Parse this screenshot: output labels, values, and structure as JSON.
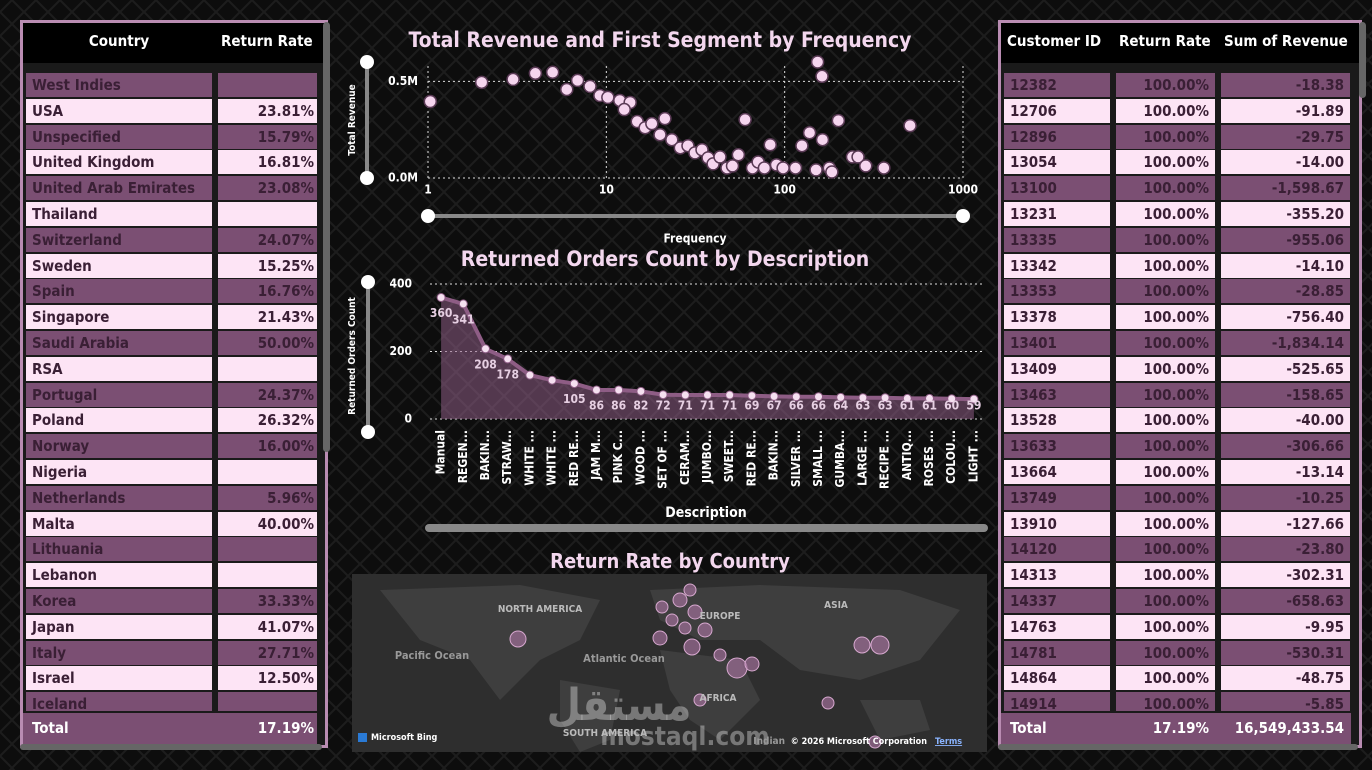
{
  "country_table": {
    "headers": [
      "Country",
      "Return Rate"
    ],
    "rows": [
      [
        "West Indies",
        null
      ],
      [
        "USA",
        "23.81%"
      ],
      [
        "Unspecified",
        "15.79%"
      ],
      [
        "United Kingdom",
        "16.81%"
      ],
      [
        "United Arab Emirates",
        "23.08%"
      ],
      [
        "Thailand",
        null
      ],
      [
        "Switzerland",
        "24.07%"
      ],
      [
        "Sweden",
        "15.25%"
      ],
      [
        "Spain",
        "16.76%"
      ],
      [
        "Singapore",
        "21.43%"
      ],
      [
        "Saudi Arabia",
        "50.00%"
      ],
      [
        "RSA",
        null
      ],
      [
        "Portugal",
        "24.37%"
      ],
      [
        "Poland",
        "26.32%"
      ],
      [
        "Norway",
        "16.00%"
      ],
      [
        "Nigeria",
        null
      ],
      [
        "Netherlands",
        "5.96%"
      ],
      [
        "Malta",
        "40.00%"
      ],
      [
        "Lithuania",
        null
      ],
      [
        "Lebanon",
        null
      ],
      [
        "Korea",
        "33.33%"
      ],
      [
        "Japan",
        "41.07%"
      ],
      [
        "Italy",
        "27.71%"
      ],
      [
        "Israel",
        "12.50%"
      ],
      [
        "Iceland",
        null
      ]
    ],
    "total": [
      "Total",
      "17.19%"
    ]
  },
  "customer_table": {
    "headers": [
      "Customer ID",
      "Return Rate",
      "Sum of Revenue"
    ],
    "rows": [
      [
        "12382",
        "100.00%",
        "-18.38"
      ],
      [
        "12706",
        "100.00%",
        "-91.89"
      ],
      [
        "12896",
        "100.00%",
        "-29.75"
      ],
      [
        "13054",
        "100.00%",
        "-14.00"
      ],
      [
        "13100",
        "100.00%",
        "-1,598.67"
      ],
      [
        "13231",
        "100.00%",
        "-355.20"
      ],
      [
        "13335",
        "100.00%",
        "-955.06"
      ],
      [
        "13342",
        "100.00%",
        "-14.10"
      ],
      [
        "13353",
        "100.00%",
        "-28.85"
      ],
      [
        "13378",
        "100.00%",
        "-756.40"
      ],
      [
        "13401",
        "100.00%",
        "-1,834.14"
      ],
      [
        "13409",
        "100.00%",
        "-525.65"
      ],
      [
        "13463",
        "100.00%",
        "-158.65"
      ],
      [
        "13528",
        "100.00%",
        "-40.00"
      ],
      [
        "13633",
        "100.00%",
        "-306.66"
      ],
      [
        "13664",
        "100.00%",
        "-13.14"
      ],
      [
        "13749",
        "100.00%",
        "-10.25"
      ],
      [
        "13910",
        "100.00%",
        "-127.66"
      ],
      [
        "14120",
        "100.00%",
        "-23.80"
      ],
      [
        "14313",
        "100.00%",
        "-302.31"
      ],
      [
        "14337",
        "100.00%",
        "-658.63"
      ],
      [
        "14763",
        "100.00%",
        "-9.95"
      ],
      [
        "14781",
        "100.00%",
        "-530.31"
      ],
      [
        "14864",
        "100.00%",
        "-48.75"
      ],
      [
        "14914",
        "100.00%",
        "-5.85"
      ]
    ],
    "total": [
      "Total",
      "17.19%",
      "16,549,433.54"
    ]
  },
  "chart_data": [
    {
      "type": "scatter",
      "title": "Total Revenue and First Segment by Frequency",
      "x_label": "Frequency",
      "y_label": "Total Revenue",
      "x_log": true,
      "grid": true,
      "color": "#f5d5ee",
      "x": [
        1.03,
        2,
        3,
        4,
        5,
        6,
        6.9,
        8.1,
        9.2,
        10.2,
        11.9,
        13.6,
        12.6,
        14.9,
        16.5,
        18,
        20,
        21.3,
        23.3,
        26,
        28.7,
        31.4,
        34.4,
        37.2,
        39.7,
        43.4,
        47.5,
        51,
        55,
        60,
        66,
        71,
        77,
        83,
        90,
        98,
        115,
        125,
        138,
        150,
        153,
        162,
        163,
        178,
        184,
        200,
        240,
        258,
        285,
        360,
        505
      ],
      "values": [
        395800,
        494800,
        510000,
        541600,
        546800,
        458000,
        505000,
        474000,
        427000,
        417000,
        401000,
        390600,
        354000,
        292000,
        260000,
        281000,
        224000,
        307000,
        198000,
        156000,
        167000,
        130000,
        146000,
        104000,
        73000,
        109000,
        52000,
        62500,
        120000,
        302000,
        52000,
        83000,
        52000,
        172000,
        68000,
        52000,
        52000,
        167000,
        234000,
        42000,
        600000,
        526000,
        198000,
        52000,
        31000,
        297000,
        109000,
        109000,
        62500,
        52000,
        271000
      ],
      "xlim": [
        1,
        1000
      ],
      "xticks": [
        1,
        10,
        100,
        1000
      ],
      "ylim": [
        0,
        600000
      ],
      "yticks": [
        {
          "value": 0,
          "label": "0.0M"
        },
        {
          "value": 500000,
          "label": "0.5M"
        }
      ]
    },
    {
      "type": "area",
      "title": "Returned Orders Count by Description",
      "x_label": "Description",
      "y_label": "Returned Orders Count",
      "grid": true,
      "color": "#8e5d85",
      "categories": [
        "Manual",
        "REGEN...",
        "BAKIN...",
        "STRAW...",
        "WHITE ...",
        "WHITE ...",
        "RED RE...",
        "JAM M...",
        "PINK C...",
        "WOOD ...",
        "SET OF ...",
        "CERAM...",
        "JUMBO...",
        "SWEET...",
        "RED RE...",
        "BAKIN...",
        "SILVER ...",
        "SMALL ...",
        "GUMBA...",
        "LARGE ...",
        "RECIPE ...",
        "ANTIQ...",
        "ROSES ...",
        "COLOU...",
        "LIGHT ..."
      ],
      "values": [
        360,
        341,
        208,
        178,
        130,
        115,
        105,
        86,
        86,
        82,
        72,
        71,
        71,
        71,
        69,
        67,
        66,
        66,
        64,
        63,
        63,
        61,
        61,
        60,
        59
      ],
      "value_labels": [
        "360",
        "341",
        "208",
        "178",
        null,
        null,
        "105",
        "86",
        "86",
        "82",
        "72",
        "71",
        "71",
        "71",
        "69",
        "67",
        "66",
        "66",
        "64",
        "63",
        "63",
        "61",
        "61",
        "60",
        "59"
      ],
      "ylim": [
        0,
        400
      ],
      "yticks": [
        0,
        200,
        400
      ]
    }
  ],
  "map": {
    "title": "Return Rate by Country",
    "labels": [
      "NORTH AMERICA",
      "EUROPE",
      "ASIA",
      "Pacific Ocean",
      "Atlantic Ocean",
      "AFRICA",
      "SOUTH AMERICA",
      "Indian"
    ],
    "brand": "Microsoft Bing",
    "copyright": "© 2026 Microsoft Corporation",
    "terms": "Terms"
  },
  "watermark": [
    "مستقل",
    "mostaql.com"
  ]
}
